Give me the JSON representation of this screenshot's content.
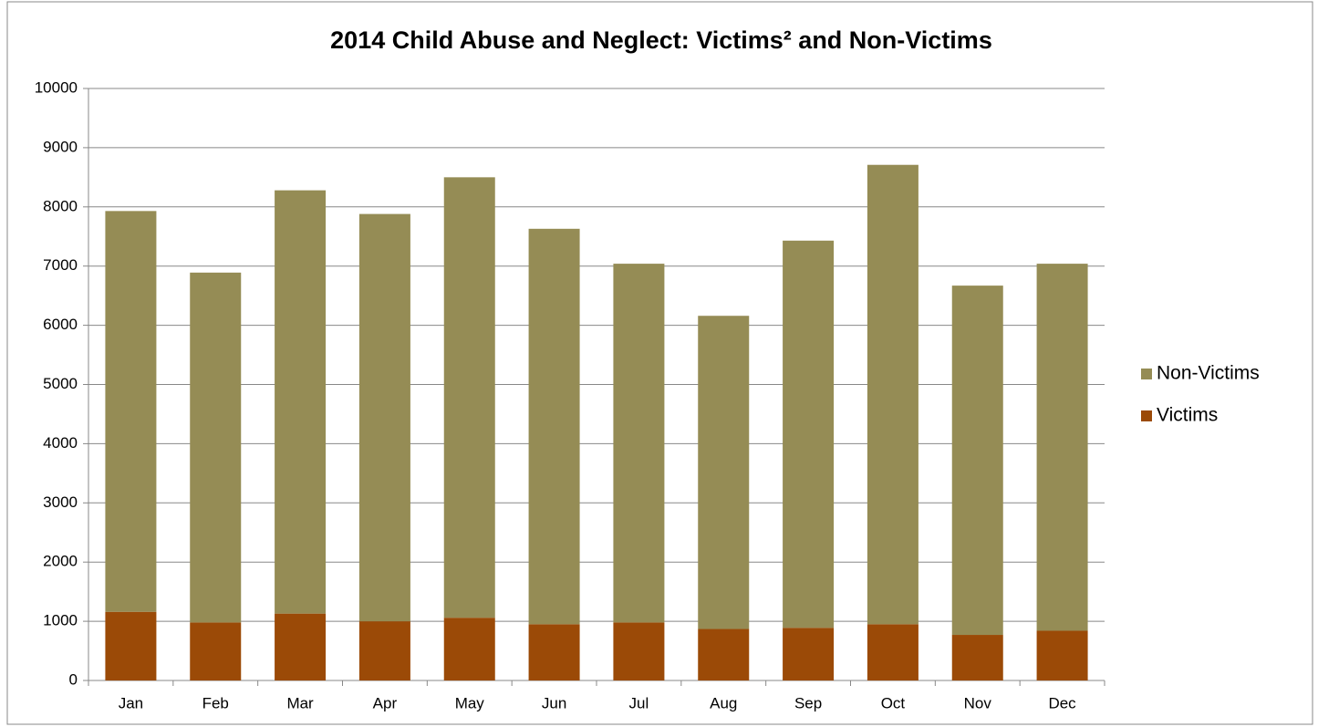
{
  "chart_data": {
    "type": "stacked_bar",
    "title": "2014 Child Abuse and Neglect:  Victims² and Non-Victims",
    "categories": [
      "Jan",
      "Feb",
      "Mar",
      "Apr",
      "May",
      "Jun",
      "Jul",
      "Aug",
      "Sep",
      "Oct",
      "Nov",
      "Dec"
    ],
    "series": [
      {
        "name": "Victims",
        "color": "#9b4a07",
        "values": [
          1160,
          980,
          1130,
          1000,
          1060,
          950,
          980,
          870,
          890,
          950,
          770,
          840
        ]
      },
      {
        "name": "Non-Victims",
        "color": "#958c55",
        "values": [
          6770,
          5910,
          7150,
          6880,
          7440,
          6680,
          6060,
          5290,
          6540,
          7760,
          5900,
          6200
        ]
      }
    ],
    "ylim": [
      0,
      10000
    ],
    "yticks": [
      0,
      1000,
      2000,
      3000,
      4000,
      5000,
      6000,
      7000,
      8000,
      9000,
      10000
    ],
    "grid": true,
    "legend": "right"
  }
}
